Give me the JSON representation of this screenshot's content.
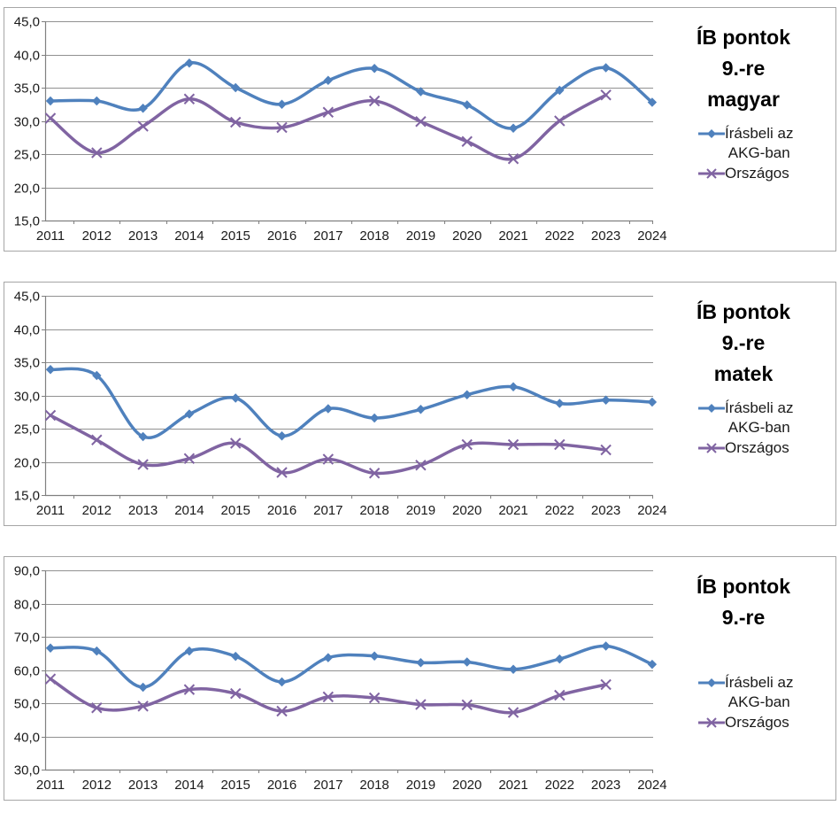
{
  "page": {
    "background": "#ffffff"
  },
  "colors": {
    "akg": "#4F81BD",
    "orszagos": "#8064A2",
    "gridline": "#919191",
    "axis": "#808080",
    "border": "#A6A6A6",
    "text": "#1a1a1a"
  },
  "legend": {
    "series1_label": "Írásbeli az AKG-ban",
    "series1_display": "Írásbeli az\nAKG-ban",
    "series2_label": "Országos"
  },
  "chart_data": [
    {
      "type": "line",
      "title": "ÍB pontok 9.-re magyar",
      "title_display": "ÍB pontok\n9.-re\nmagyar",
      "categories": [
        "2011",
        "2012",
        "2013",
        "2014",
        "2015",
        "2016",
        "2017",
        "2018",
        "2019",
        "2020",
        "2021",
        "2022",
        "2023",
        "2024"
      ],
      "series": [
        {
          "name": "Írásbeli az AKG-ban",
          "color": "#4F81BD",
          "marker": "diamond",
          "values": [
            33.0,
            33.0,
            31.9,
            38.7,
            35.0,
            32.5,
            36.1,
            37.9,
            34.4,
            32.4,
            28.9,
            34.6,
            38.0,
            32.8
          ]
        },
        {
          "name": "Országos",
          "color": "#8064A2",
          "marker": "x",
          "values": [
            30.4,
            25.2,
            29.2,
            33.3,
            29.8,
            29.0,
            31.3,
            33.0,
            29.9,
            26.9,
            24.3,
            30.0,
            33.9,
            null
          ]
        }
      ],
      "ylim": [
        15,
        45
      ],
      "ytick_step": 5,
      "ytick_labels": [
        "15,0",
        "20,0",
        "25,0",
        "30,0",
        "35,0",
        "40,0",
        "45,0"
      ],
      "grid": true,
      "smooth": true,
      "legend_position": "right"
    },
    {
      "type": "line",
      "title": "ÍB pontok 9.-re matek",
      "title_display": "ÍB pontok\n9.-re\nmatek",
      "categories": [
        "2011",
        "2012",
        "2013",
        "2014",
        "2015",
        "2016",
        "2017",
        "2018",
        "2019",
        "2020",
        "2021",
        "2022",
        "2023",
        "2024"
      ],
      "series": [
        {
          "name": "Írásbeli az AKG-ban",
          "color": "#4F81BD",
          "marker": "diamond",
          "values": [
            33.9,
            33.0,
            23.8,
            27.2,
            29.6,
            23.9,
            28.0,
            26.6,
            27.9,
            30.1,
            31.3,
            28.8,
            29.3,
            29.0
          ]
        },
        {
          "name": "Országos",
          "color": "#8064A2",
          "marker": "x",
          "values": [
            27.0,
            23.3,
            19.6,
            20.5,
            22.8,
            18.4,
            20.4,
            18.3,
            19.5,
            22.6,
            22.6,
            22.6,
            21.8,
            null
          ]
        }
      ],
      "ylim": [
        15,
        45
      ],
      "ytick_step": 5,
      "ytick_labels": [
        "15,0",
        "20,0",
        "25,0",
        "30,0",
        "35,0",
        "40,0",
        "45,0"
      ],
      "grid": true,
      "smooth": true,
      "legend_position": "right"
    },
    {
      "type": "line",
      "title": "ÍB pontok 9.-re",
      "title_display": "ÍB pontok\n9.-re",
      "categories": [
        "2011",
        "2012",
        "2013",
        "2014",
        "2015",
        "2016",
        "2017",
        "2018",
        "2019",
        "2020",
        "2021",
        "2022",
        "2023",
        "2024"
      ],
      "series": [
        {
          "name": "Írásbeli az AKG-ban",
          "color": "#4F81BD",
          "marker": "diamond",
          "values": [
            66.6,
            65.7,
            54.8,
            65.7,
            64.1,
            56.4,
            63.7,
            64.2,
            62.2,
            62.4,
            60.2,
            63.3,
            67.2,
            61.7
          ]
        },
        {
          "name": "Országos",
          "color": "#8064A2",
          "marker": "x",
          "values": [
            57.3,
            48.6,
            49.1,
            54.1,
            52.9,
            47.6,
            51.9,
            51.6,
            49.6,
            49.5,
            47.2,
            52.4,
            55.6,
            null
          ]
        }
      ],
      "ylim": [
        30,
        90
      ],
      "ytick_step": 10,
      "ytick_labels": [
        "30,0",
        "40,0",
        "50,0",
        "60,0",
        "70,0",
        "80,0",
        "90,0"
      ],
      "grid": true,
      "smooth": true,
      "legend_position": "right"
    }
  ]
}
